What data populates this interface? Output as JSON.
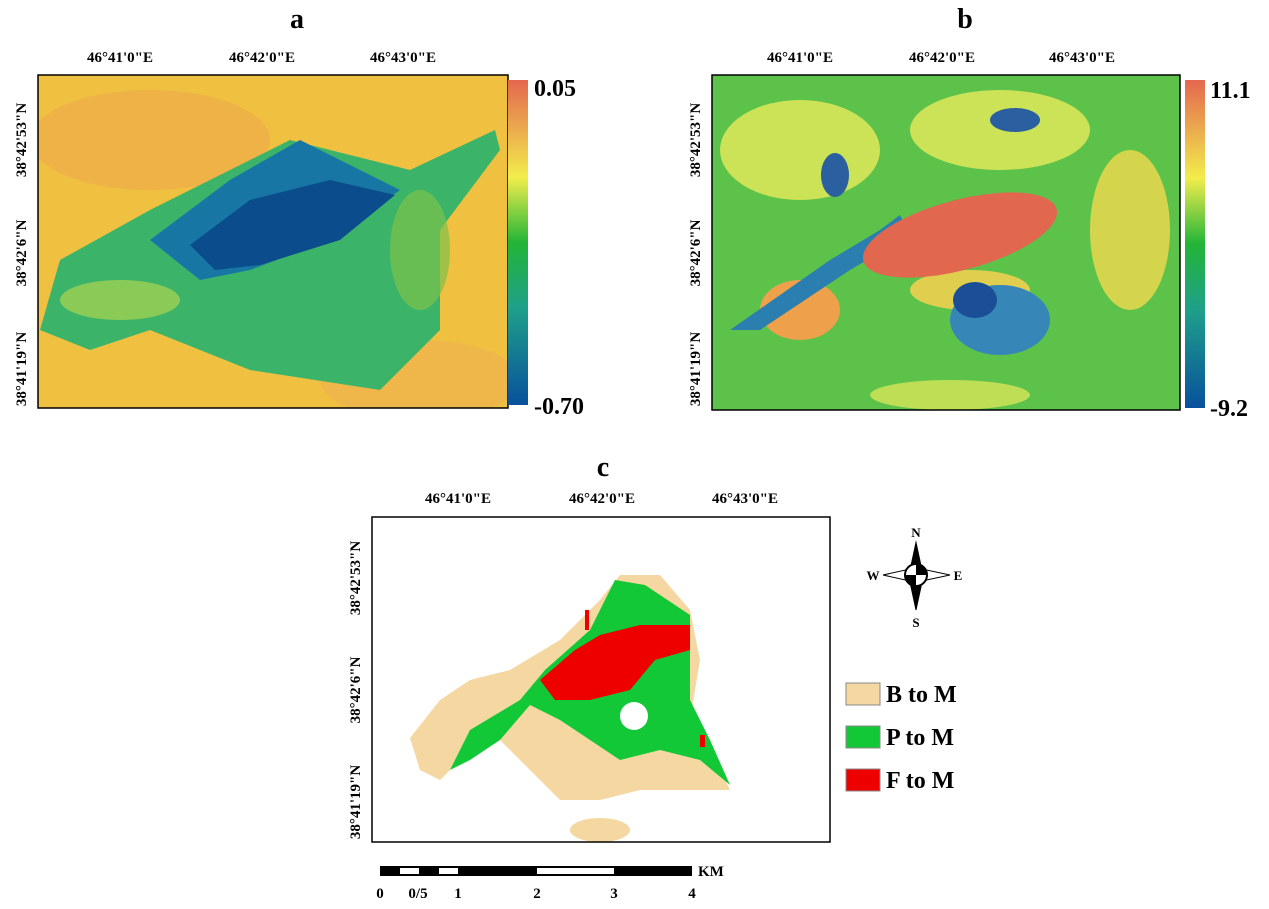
{
  "panels": [
    {
      "label": "a",
      "lon_ticks": [
        "46°41'0\"E",
        "46°42'0\"E",
        "46°43'0\"E"
      ],
      "lat_ticks": [
        "38°42'53\"N",
        "38°42'6\"N",
        "38°41'19\"N"
      ],
      "colorbar": {
        "max": "0.05",
        "min": "-0.70"
      }
    },
    {
      "label": "b",
      "lon_ticks": [
        "46°41'0\"E",
        "46°42'0\"E",
        "46°43'0\"E"
      ],
      "lat_ticks": [
        "38°42'53\"N",
        "38°42'6\"N",
        "38°41'19\"N"
      ],
      "colorbar": {
        "max": "11.1",
        "min": "-9.2"
      }
    },
    {
      "label": "c",
      "lon_ticks": [
        "46°41'0\"E",
        "46°42'0\"E",
        "46°43'0\"E"
      ],
      "lat_ticks": [
        "38°42'53\"N",
        "38°42'6\"N",
        "38°41'19\"N"
      ]
    }
  ],
  "legend": [
    {
      "label": "B to M",
      "color": "#f5d7a1"
    },
    {
      "label": "P to M",
      "color": "#13c837"
    },
    {
      "label": "F to M",
      "color": "#ee0000"
    }
  ],
  "compass": {
    "n": "N",
    "s": "S",
    "e": "E",
    "w": "W"
  },
  "scale_bar": {
    "labels": [
      "0",
      "0/5",
      "1",
      "2",
      "3",
      "4"
    ],
    "unit": "KM"
  }
}
